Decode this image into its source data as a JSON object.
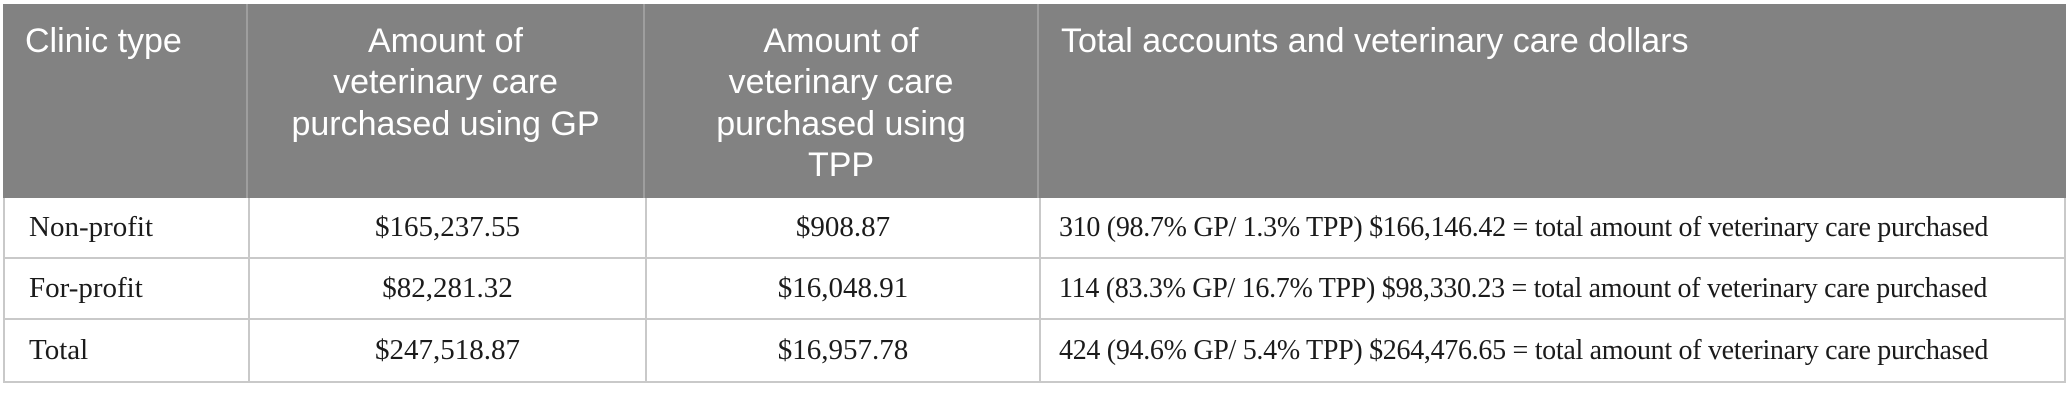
{
  "table": {
    "header": {
      "clinic_type": "Clinic type",
      "gp": "Amount of\nveterinary care\npurchased using GP",
      "tpp": "Amount of\nveterinary care\npurchased using\nTPP",
      "total": "Total accounts and veterinary care dollars"
    },
    "rows": [
      {
        "clinic_type": "Non-profit",
        "gp": "$165,237.55",
        "tpp": "$908.87",
        "total": "310 (98.7% GP/ 1.3% TPP) $166,146.42 = total amount of veterinary care purchased"
      },
      {
        "clinic_type": "For-profit",
        "gp": "$82,281.32",
        "tpp": "$16,048.91",
        "total": "114 (83.3% GP/ 16.7% TPP) $98,330.23 = total amount of veterinary care purchased"
      },
      {
        "clinic_type": "Total",
        "gp": "$247,518.87",
        "tpp": "$16,957.78",
        "total": "424 (94.6% GP/ 5.4% TPP) $264,476.65 = total amount of veterinary care purchased"
      }
    ],
    "colors": {
      "header_bg": "#828282",
      "header_text": "#ffffff",
      "header_divider": "#9e9e9e",
      "body_text": "#1b1b1b",
      "grid_line": "#c9c9c9",
      "page_bg": "#ffffff"
    }
  }
}
